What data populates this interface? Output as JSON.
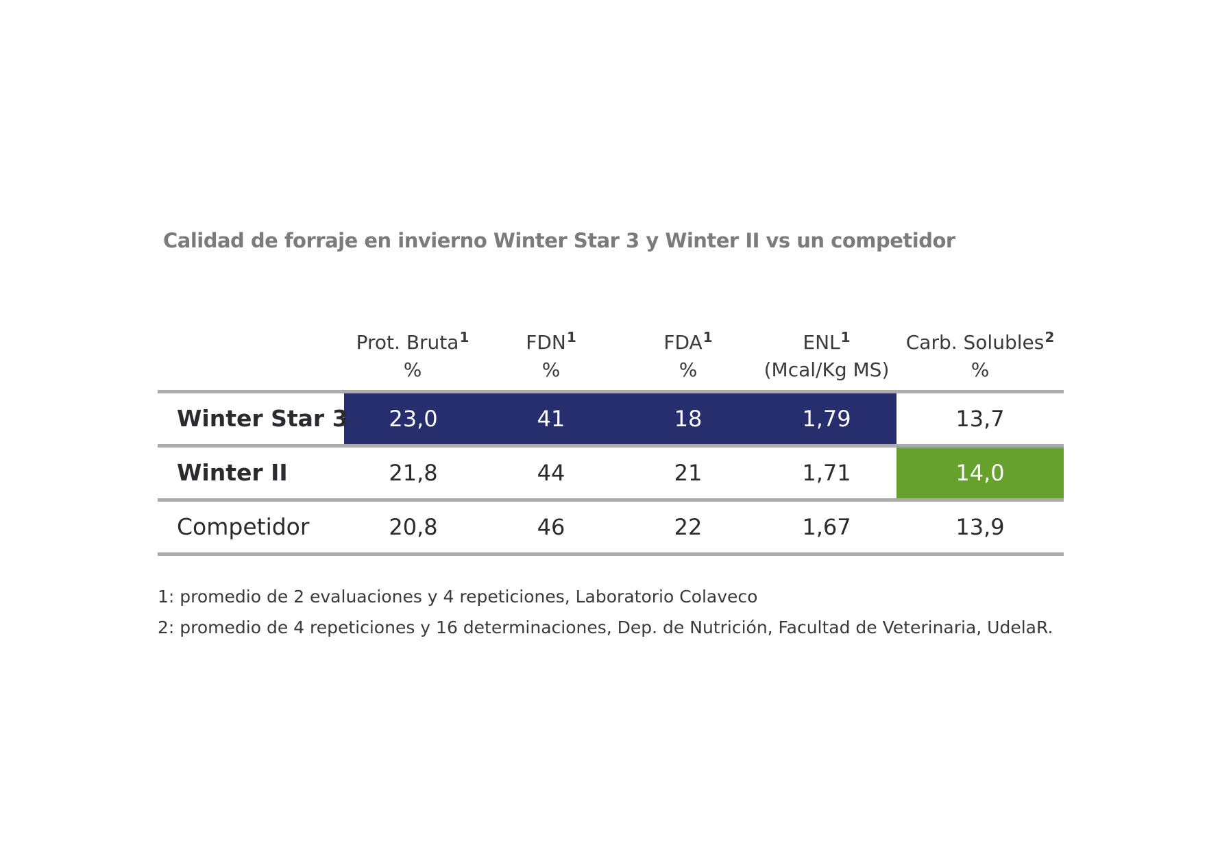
{
  "title": "Calidad de forraje en invierno Winter Star 3 y Winter II vs un competidor",
  "colors": {
    "highlight_blue": "#262e6d",
    "highlight_green": "#66a12e",
    "rule_gray": "#abaaae",
    "title_gray": "#7b7b7d"
  },
  "chart_data": {
    "type": "table",
    "columns": [
      {
        "name": "Prot. Bruta",
        "sup": "1",
        "unit": "%"
      },
      {
        "name": "FDN",
        "sup": "1",
        "unit": "%"
      },
      {
        "name": "FDA",
        "sup": "1",
        "unit": "%"
      },
      {
        "name": "ENL",
        "sup": "1",
        "unit": "(Mcal/Kg MS)"
      },
      {
        "name": "Carb. Solubles",
        "sup": "2",
        "unit": "%"
      }
    ],
    "rows": [
      {
        "label": "Winter Star 3",
        "values": [
          "23,0",
          "41",
          "18",
          "1,79",
          "13,7"
        ]
      },
      {
        "label": "Winter II",
        "values": [
          "21,8",
          "44",
          "21",
          "1,71",
          "14,0"
        ]
      },
      {
        "label": "Competidor",
        "values": [
          "20,8",
          "46",
          "22",
          "1,67",
          "13,9"
        ]
      }
    ],
    "highlights": [
      {
        "row": "Winter Star 3",
        "columns": [
          "Prot. Bruta",
          "FDN",
          "FDA",
          "ENL"
        ],
        "color": "#262e6d"
      },
      {
        "row": "Winter II",
        "columns": [
          "Carb. Solubles"
        ],
        "color": "#66a12e"
      }
    ]
  },
  "footnotes": [
    "1: promedio de 2 evaluaciones y 4 repeticiones, Laboratorio Colaveco",
    "2:  promedio de 4 repeticiones y 16 determinaciones, Dep. de Nutrición, Facultad de Veterinaria, UdelaR."
  ]
}
